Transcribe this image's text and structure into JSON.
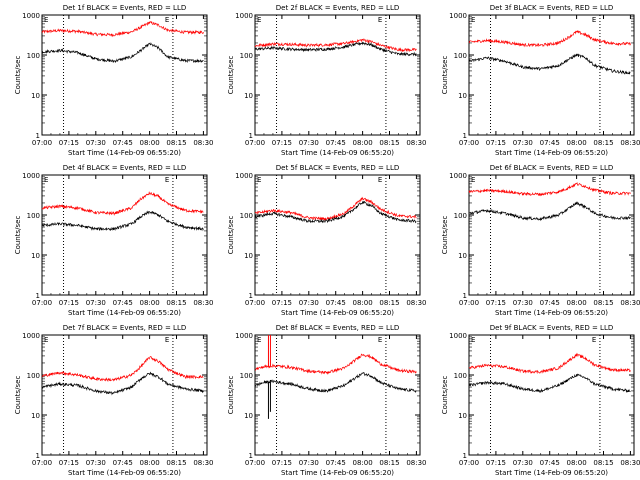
{
  "colors": {
    "events": "#000000",
    "lld": "#ff0000",
    "axis": "#000000",
    "marker": "#000000"
  },
  "x_axis": {
    "label": "Start Time (14-Feb-09 06:55:20)",
    "ticks": [
      "07:00",
      "07:15",
      "07:30",
      "07:45",
      "08:00",
      "08:15",
      "08:30"
    ],
    "tick_minutes": [
      0,
      15,
      30,
      45,
      60,
      75,
      90
    ],
    "xlim_minutes": [
      0,
      92
    ]
  },
  "y_axis": {
    "label": "Counts/sec",
    "scale": "log",
    "ticks": [
      "1",
      "10",
      "100",
      "1000"
    ],
    "tick_values": [
      1,
      10,
      100,
      1000
    ],
    "ylim": [
      1,
      1000
    ]
  },
  "markers": {
    "minutes": [
      12,
      73
    ],
    "labels": [
      "E",
      "E"
    ]
  },
  "chart_data": [
    {
      "type": "line",
      "title": "Det 1f BLACK = Events, RED = LLD",
      "x": [
        0,
        10,
        20,
        30,
        40,
        50,
        55,
        60,
        65,
        70,
        80,
        90
      ],
      "series": [
        {
          "name": "Events",
          "values": [
            120,
            130,
            115,
            80,
            70,
            90,
            130,
            190,
            150,
            90,
            72,
            72
          ]
        },
        {
          "name": "LLD",
          "values": [
            380,
            410,
            390,
            330,
            320,
            380,
            490,
            650,
            560,
            420,
            370,
            370
          ]
        }
      ]
    },
    {
      "type": "line",
      "title": "Det 2f BLACK = Events, RED = LLD",
      "x": [
        0,
        10,
        20,
        30,
        40,
        50,
        55,
        60,
        65,
        70,
        80,
        90
      ],
      "series": [
        {
          "name": "Events",
          "values": [
            140,
            150,
            140,
            135,
            140,
            160,
            180,
            200,
            180,
            140,
            105,
            105
          ]
        },
        {
          "name": "LLD",
          "values": [
            170,
            190,
            185,
            175,
            180,
            195,
            215,
            240,
            215,
            175,
            135,
            135
          ]
        }
      ]
    },
    {
      "type": "line",
      "title": "Det 3f BLACK = Events, RED = LLD",
      "x": [
        0,
        10,
        20,
        30,
        40,
        50,
        55,
        60,
        65,
        70,
        80,
        90
      ],
      "series": [
        {
          "name": "Events",
          "values": [
            70,
            85,
            70,
            50,
            45,
            55,
            75,
            100,
            85,
            55,
            40,
            35
          ]
        },
        {
          "name": "LLD",
          "values": [
            210,
            230,
            210,
            180,
            175,
            200,
            270,
            380,
            320,
            240,
            195,
            190
          ]
        }
      ]
    },
    {
      "type": "line",
      "title": "Det 4f BLACK = Events, RED = LLD",
      "x": [
        0,
        10,
        20,
        30,
        40,
        50,
        55,
        60,
        65,
        70,
        80,
        90
      ],
      "series": [
        {
          "name": "Events",
          "values": [
            55,
            60,
            55,
            45,
            45,
            60,
            90,
            120,
            100,
            70,
            50,
            45
          ]
        },
        {
          "name": "LLD",
          "values": [
            150,
            165,
            150,
            115,
            110,
            150,
            250,
            350,
            290,
            190,
            130,
            120
          ]
        }
      ]
    },
    {
      "type": "line",
      "title": "Det 5f BLACK = Events, RED = LLD",
      "x": [
        0,
        10,
        20,
        30,
        40,
        50,
        55,
        60,
        65,
        70,
        80,
        90
      ],
      "series": [
        {
          "name": "Events",
          "values": [
            90,
            110,
            90,
            70,
            70,
            95,
            140,
            210,
            170,
            110,
            75,
            70
          ]
        },
        {
          "name": "LLD",
          "values": [
            110,
            130,
            115,
            85,
            80,
            110,
            170,
            260,
            210,
            140,
            95,
            90
          ]
        }
      ]
    },
    {
      "type": "line",
      "title": "Det 6f BLACK = Events, RED = LLD",
      "x": [
        0,
        10,
        20,
        30,
        40,
        50,
        55,
        60,
        65,
        70,
        80,
        90
      ],
      "series": [
        {
          "name": "Events",
          "values": [
            110,
            130,
            110,
            85,
            80,
            100,
            140,
            200,
            160,
            110,
            85,
            85
          ]
        },
        {
          "name": "LLD",
          "values": [
            380,
            410,
            390,
            340,
            330,
            380,
            470,
            600,
            520,
            420,
            350,
            350
          ]
        }
      ]
    },
    {
      "type": "line",
      "title": "Det 7f BLACK = Events, RED = LLD",
      "x": [
        0,
        10,
        20,
        30,
        40,
        50,
        55,
        60,
        65,
        70,
        80,
        90
      ],
      "series": [
        {
          "name": "Events",
          "values": [
            50,
            60,
            55,
            40,
            35,
            50,
            80,
            110,
            90,
            60,
            45,
            40
          ]
        },
        {
          "name": "LLD",
          "values": [
            95,
            115,
            100,
            80,
            75,
            100,
            160,
            280,
            220,
            140,
            90,
            90
          ]
        }
      ]
    },
    {
      "type": "line",
      "title": "Det 8f BLACK = Events, RED = LLD",
      "x": [
        0,
        5,
        10,
        14,
        20,
        30,
        40,
        50,
        55,
        60,
        65,
        70,
        80,
        90
      ],
      "series": [
        {
          "name": "Events",
          "values": [
            55,
            65,
            70,
            65,
            60,
            45,
            40,
            55,
            80,
            110,
            95,
            65,
            45,
            40
          ]
        },
        {
          "name": "LLD",
          "values": [
            140,
            160,
            170,
            165,
            155,
            125,
            115,
            150,
            220,
            330,
            280,
            190,
            130,
            120
          ]
        }
      ],
      "spikes": [
        {
          "minute": 7.5,
          "events_min": 8,
          "lld_max": 1000
        },
        {
          "minute": 8.6,
          "events_min": 12,
          "lld_max": 1000
        }
      ]
    },
    {
      "type": "line",
      "title": "Det 9f BLACK = Events, RED = LLD",
      "x": [
        0,
        10,
        20,
        30,
        40,
        50,
        55,
        60,
        65,
        70,
        80,
        90
      ],
      "series": [
        {
          "name": "Events",
          "values": [
            55,
            65,
            60,
            45,
            40,
            55,
            75,
            100,
            85,
            60,
            45,
            40
          ]
        },
        {
          "name": "LLD",
          "values": [
            150,
            175,
            160,
            125,
            120,
            150,
            220,
            320,
            260,
            180,
            135,
            130
          ]
        }
      ]
    }
  ]
}
